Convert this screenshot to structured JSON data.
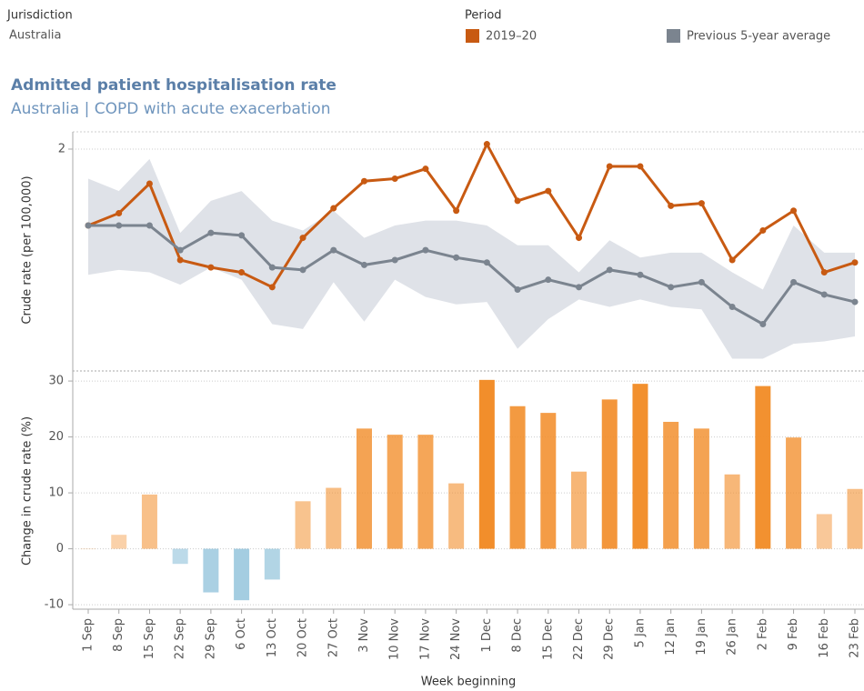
{
  "filters": {
    "jurisdiction_label": "Jurisdiction",
    "jurisdiction": "Australia",
    "period_label": "Period"
  },
  "chart_data": [
    {
      "type": "line",
      "title": "Admitted patient hospitalisation rate",
      "subtitle": "Australia | COPD with acute exacerbation",
      "y_label": "Crude rate (per 100,000)",
      "series": [
        {
          "name": "2019–20",
          "color": "#c85a12",
          "values": [
            1.69,
            1.74,
            1.86,
            1.55,
            1.52,
            1.5,
            1.44,
            1.64,
            1.76,
            1.87,
            1.88,
            1.92,
            1.75,
            2.02,
            1.79,
            1.83,
            1.64,
            1.93,
            1.93,
            1.77,
            1.78,
            1.55,
            1.67,
            1.75,
            1.5,
            1.54
          ]
        },
        {
          "name": "Previous 5-year average",
          "color": "#7b848f",
          "range_color": "#dfe2e8",
          "values": [
            1.69,
            1.69,
            1.69,
            1.59,
            1.66,
            1.65,
            1.52,
            1.51,
            1.59,
            1.53,
            1.55,
            1.59,
            1.56,
            1.54,
            1.43,
            1.47,
            1.44,
            1.51,
            1.49,
            1.44,
            1.46,
            1.36,
            1.29,
            1.46,
            1.41,
            1.38
          ],
          "range_upper": [
            1.88,
            1.83,
            1.96,
            1.66,
            1.79,
            1.83,
            1.71,
            1.67,
            1.75,
            1.64,
            1.69,
            1.71,
            1.71,
            1.69,
            1.61,
            1.61,
            1.5,
            1.63,
            1.56,
            1.58,
            1.58,
            1.5,
            1.43,
            1.69,
            1.58,
            1.58
          ],
          "range_lower": [
            1.49,
            1.51,
            1.5,
            1.45,
            1.52,
            1.47,
            1.29,
            1.27,
            1.46,
            1.3,
            1.47,
            1.4,
            1.37,
            1.38,
            1.19,
            1.31,
            1.39,
            1.36,
            1.39,
            1.36,
            1.35,
            1.15,
            1.15,
            1.21,
            1.22,
            1.24
          ]
        }
      ],
      "ylim": [
        1.1,
        2.07
      ],
      "yticks": [
        2
      ]
    },
    {
      "type": "bar",
      "y_label": "Change in crude rate (%)",
      "x_label": "Week beginning",
      "categories": [
        "1 Sep",
        "8 Sep",
        "15 Sep",
        "22 Sep",
        "29 Sep",
        "6 Oct",
        "13 Oct",
        "20 Oct",
        "27 Oct",
        "3 Nov",
        "10 Nov",
        "17 Nov",
        "24 Nov",
        "1 Dec",
        "8 Dec",
        "15 Dec",
        "22 Dec",
        "29 Dec",
        "5 Jan",
        "12 Jan",
        "19 Jan",
        "26 Jan",
        "2 Feb",
        "9 Feb",
        "16 Feb",
        "23 Feb"
      ],
      "values": [
        0,
        2.5,
        9.7,
        -2.7,
        -7.8,
        -9.2,
        -5.5,
        8.5,
        10.9,
        21.5,
        20.4,
        20.4,
        11.7,
        30.2,
        25.5,
        24.3,
        13.8,
        26.7,
        29.5,
        22.7,
        21.5,
        13.3,
        29.1,
        19.9,
        6.2,
        10.7
      ],
      "color_positive": "#f28e2b",
      "color_negative": "#5aa4c8",
      "ylim": [
        -10.8,
        31.8
      ],
      "yticks": [
        -10,
        0,
        10,
        20,
        30
      ]
    }
  ]
}
